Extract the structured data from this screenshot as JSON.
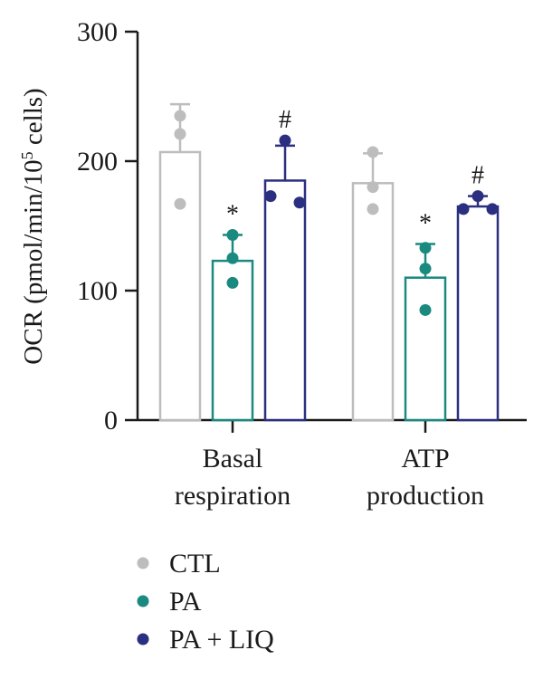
{
  "chart_data": {
    "type": "bar",
    "ylabel_main": "OCR (pmol/min/10",
    "ylabel_sup": "5",
    "ylabel_tail": " cells)",
    "ylim": [
      0,
      300
    ],
    "yticks": [
      "0",
      "100",
      "200",
      "300"
    ],
    "categories": [
      {
        "line1": "Basal",
        "line2": "respiration"
      },
      {
        "line1": "ATP",
        "line2": "production"
      }
    ],
    "series": [
      {
        "name": "CTL",
        "color": "#bdbdbd",
        "values": [
          207,
          183
        ],
        "errors": [
          37,
          23
        ],
        "points": [
          [
            235,
            221,
            167
          ],
          [
            207,
            180,
            163
          ]
        ],
        "annot": [
          "",
          ""
        ]
      },
      {
        "name": "PA",
        "color": "#1a8a80",
        "values": [
          123,
          110
        ],
        "errors": [
          20,
          26
        ],
        "points": [
          [
            143,
            125,
            106
          ],
          [
            133,
            117,
            85
          ]
        ],
        "annot": [
          "*",
          "*"
        ]
      },
      {
        "name": "PA + LIQ",
        "color": "#2b2f7f",
        "values": [
          185,
          165
        ],
        "errors": [
          27,
          8
        ],
        "points": [
          [
            216,
            173,
            168
          ],
          [
            173,
            163,
            163
          ]
        ],
        "annot": [
          "#",
          "#"
        ]
      }
    ],
    "legend_position": "bottom-left",
    "grid": false
  }
}
